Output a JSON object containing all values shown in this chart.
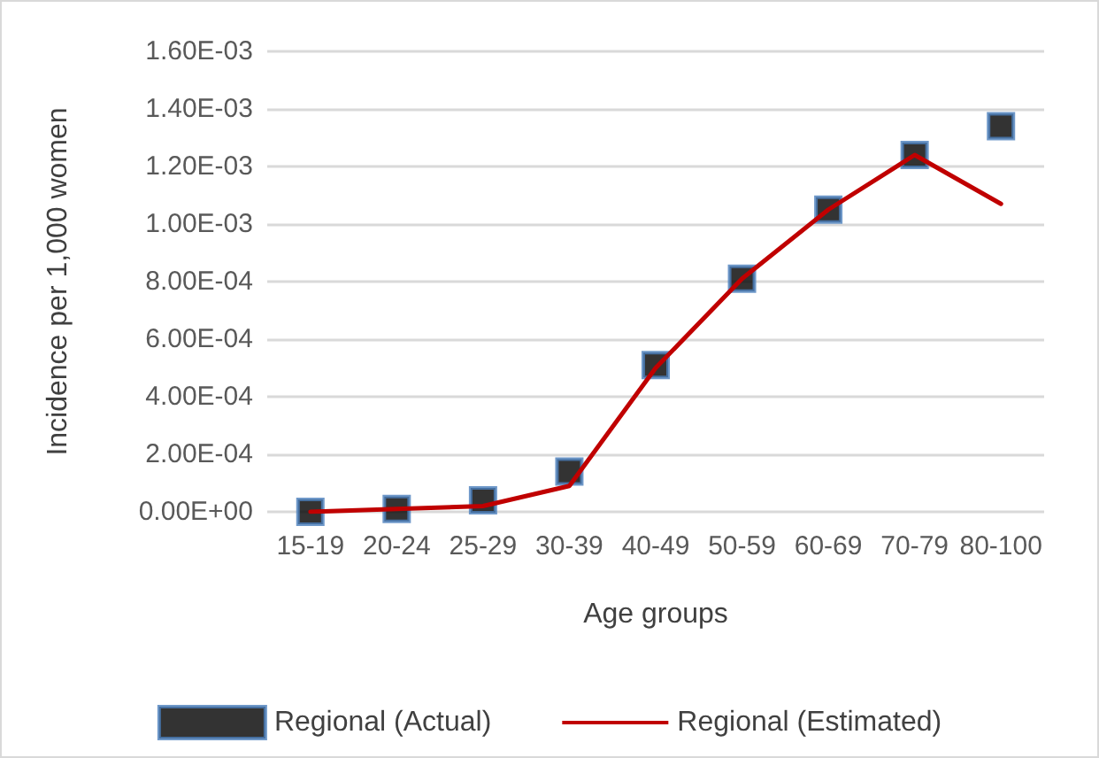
{
  "chart_data": {
    "type": "line",
    "xlabel": "Age groups",
    "ylabel": "Incidence per 1,000 women",
    "categories": [
      "15-19",
      "20-24",
      "25-29",
      "30-39",
      "40-49",
      "50-59",
      "60-69",
      "70-79",
      "80-100"
    ],
    "series": [
      {
        "name": "Regional (Actual)",
        "type": "scatter",
        "marker": "square",
        "color": "#000000",
        "values": [
          0,
          1e-05,
          4e-05,
          0.00014,
          0.00051,
          0.00081,
          0.00105,
          0.00124,
          0.00134
        ]
      },
      {
        "name": "Regional (Estimated)",
        "marker": "none",
        "line_style": "solid",
        "color": "#c00000",
        "values": [
          0,
          1e-05,
          2e-05,
          9e-05,
          0.0005,
          0.00081,
          0.00105,
          0.00124,
          0.00107
        ]
      }
    ],
    "ylim": [
      0,
      0.0016
    ],
    "yticks": [
      {
        "value": 0,
        "label": "0.00E+00"
      },
      {
        "value": 0.0002,
        "label": "2.00E-04"
      },
      {
        "value": 0.0004,
        "label": "4.00E-04"
      },
      {
        "value": 0.0006,
        "label": "6.00E-04"
      },
      {
        "value": 0.0008,
        "label": "8.00E-04"
      },
      {
        "value": 0.001,
        "label": "1.00E-03"
      },
      {
        "value": 0.0012,
        "label": "1.20E-03"
      },
      {
        "value": 0.0014,
        "label": "1.40E-03"
      },
      {
        "value": 0.0016,
        "label": "1.60E-03"
      }
    ],
    "grid": "y",
    "legend": "bottom"
  }
}
